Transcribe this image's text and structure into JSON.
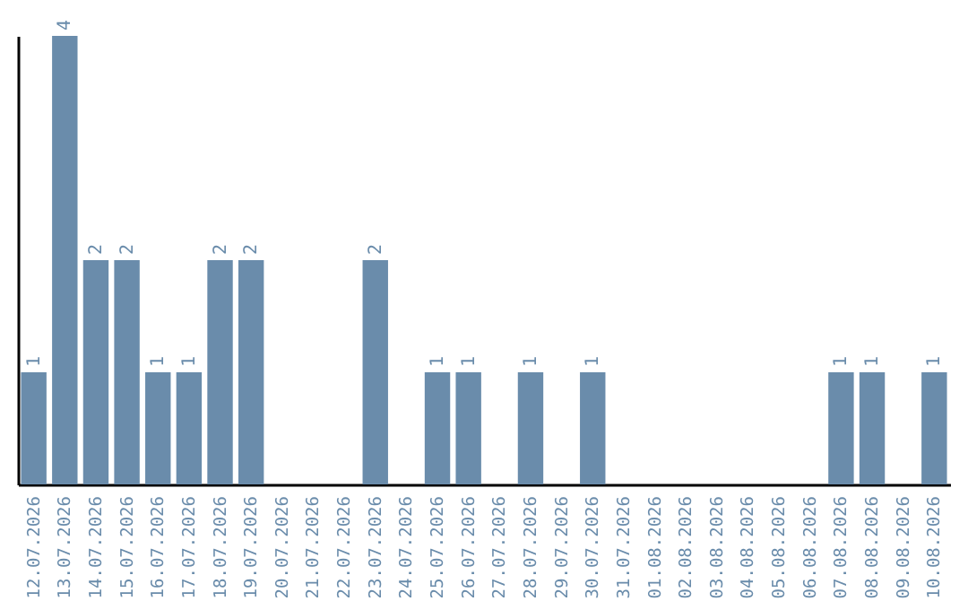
{
  "chart_data": {
    "type": "bar",
    "categories": [
      "12.07.2026",
      "13.07.2026",
      "14.07.2026",
      "15.07.2026",
      "16.07.2026",
      "17.07.2026",
      "18.07.2026",
      "19.07.2026",
      "20.07.2026",
      "21.07.2026",
      "22.07.2026",
      "23.07.2026",
      "24.07.2026",
      "25.07.2026",
      "26.07.2026",
      "27.07.2026",
      "28.07.2026",
      "29.07.2026",
      "30.07.2026",
      "31.07.2026",
      "01.08.2026",
      "02.08.2026",
      "03.08.2026",
      "04.08.2026",
      "05.08.2026",
      "06.08.2026",
      "07.08.2026",
      "08.08.2026",
      "09.08.2026",
      "10.08.2026"
    ],
    "values": [
      1,
      4,
      2,
      2,
      1,
      1,
      2,
      2,
      0,
      0,
      0,
      2,
      0,
      1,
      1,
      0,
      1,
      0,
      1,
      0,
      0,
      0,
      0,
      0,
      0,
      0,
      1,
      1,
      0,
      1
    ],
    "value_labels": [
      "1",
      "4",
      "2",
      "2",
      "1",
      "1",
      "2",
      "2",
      null,
      null,
      null,
      "2",
      null,
      "1",
      "1",
      null,
      "1",
      null,
      "1",
      null,
      null,
      null,
      null,
      null,
      null,
      null,
      "1",
      "1",
      null,
      "1"
    ],
    "color": "#6a8cab",
    "tick_labels": "x"
  }
}
